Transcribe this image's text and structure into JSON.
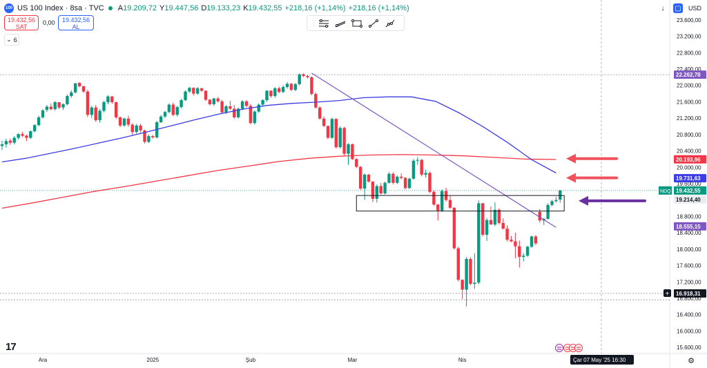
{
  "header": {
    "symbol": "US 100 Index · 8sa · TVC",
    "logo_text": "100",
    "o_label": "A",
    "o_value": "19.209,72",
    "h_label": "Y",
    "h_value": "19.447,56",
    "l_label": "D",
    "l_value": "19.133,23",
    "c_label": "K",
    "c_value": "19.432,55",
    "change": "+218,16 (+1,14%)",
    "change2": "+218,16 (+1,14%)"
  },
  "trade": {
    "sell_price": "19.432,56",
    "sell_label": "SAT",
    "spread": "0,00",
    "buy_price": "19.432,56",
    "buy_label": "AL"
  },
  "indicators_count": "6",
  "currency": "USD",
  "colors": {
    "up": "#089981",
    "down": "#f23645",
    "ma_fast": "#3b3be8",
    "ma_slow": "#f23645",
    "trendline": "#7e57c2",
    "arrow_red": "#f0525b",
    "arrow_purple": "#6a2fa1"
  },
  "chart_data": {
    "type": "candlestick",
    "ylim": [
      15450,
      23850
    ],
    "yticks": [
      "15.600,00",
      "16.000,00",
      "16.400,00",
      "16.800,00",
      "17.200,00",
      "17.600,00",
      "18.000,00",
      "18.400,00",
      "18.800,00",
      "19.200,00",
      "19.600,00",
      "20.000,00",
      "20.400,00",
      "20.800,00",
      "21.200,00",
      "21.600,00",
      "22.000,00",
      "22.400,00",
      "22.800,00",
      "23.200,00",
      "23.600,00"
    ],
    "xlabels": [
      "Ara",
      "2025",
      "Şub",
      "Mar",
      "Nis"
    ],
    "xlabel_index": [
      10,
      37,
      61,
      86,
      113
    ],
    "candles": [
      [
        20520,
        20650,
        20420,
        20560
      ],
      [
        20560,
        20700,
        20480,
        20640
      ],
      [
        20650,
        20700,
        20550,
        20600
      ],
      [
        20600,
        20760,
        20560,
        20720
      ],
      [
        20720,
        20830,
        20680,
        20810
      ],
      [
        20810,
        20860,
        20740,
        20770
      ],
      [
        20770,
        20800,
        20640,
        20720
      ],
      [
        20720,
        20900,
        20690,
        20880
      ],
      [
        20880,
        21050,
        20850,
        21030
      ],
      [
        21030,
        21260,
        21000,
        21220
      ],
      [
        21220,
        21420,
        21190,
        21390
      ],
      [
        21400,
        21520,
        21350,
        21480
      ],
      [
        21480,
        21560,
        21390,
        21420
      ],
      [
        21420,
        21620,
        21380,
        21590
      ],
      [
        21590,
        21580,
        21420,
        21460
      ],
      [
        21460,
        21560,
        21400,
        21540
      ],
      [
        21540,
        21780,
        21510,
        21740
      ],
      [
        21740,
        21880,
        21700,
        21830
      ],
      [
        21830,
        22060,
        21800,
        22050
      ],
      [
        22060,
        22080,
        21950,
        21980
      ],
      [
        21980,
        21990,
        21820,
        21850
      ],
      [
        21850,
        21890,
        21230,
        21280
      ],
      [
        21280,
        21500,
        21200,
        21460
      ],
      [
        21460,
        21520,
        21110,
        21150
      ],
      [
        21150,
        21420,
        21090,
        21380
      ],
      [
        21380,
        21620,
        21340,
        21590
      ],
      [
        21590,
        21760,
        21540,
        21730
      ],
      [
        21730,
        21740,
        21550,
        21590
      ],
      [
        21590,
        21600,
        21180,
        21220
      ],
      [
        21220,
        21240,
        20980,
        21020
      ],
      [
        21020,
        21210,
        20990,
        21190
      ],
      [
        21190,
        21260,
        20990,
        21040
      ],
      [
        21040,
        21080,
        20780,
        20860
      ],
      [
        20860,
        21060,
        20820,
        21020
      ],
      [
        21020,
        21060,
        20840,
        20900
      ],
      [
        20900,
        20920,
        20580,
        20620
      ],
      [
        20620,
        20800,
        20590,
        20760
      ],
      [
        20760,
        20790,
        20700,
        20730
      ],
      [
        20730,
        21130,
        20700,
        21100
      ],
      [
        21100,
        21280,
        21080,
        21240
      ],
      [
        21240,
        21380,
        21200,
        21350
      ],
      [
        21350,
        21560,
        21320,
        21530
      ],
      [
        21530,
        21580,
        21250,
        21280
      ],
      [
        21280,
        21500,
        21240,
        21470
      ],
      [
        21470,
        21670,
        21440,
        21640
      ],
      [
        21640,
        21880,
        21620,
        21850
      ],
      [
        21850,
        21960,
        21820,
        21940
      ],
      [
        21940,
        21950,
        21750,
        21800
      ],
      [
        21800,
        21960,
        21770,
        21930
      ],
      [
        21930,
        21940,
        21840,
        21870
      ],
      [
        21870,
        21880,
        21620,
        21650
      ],
      [
        21650,
        21670,
        21510,
        21540
      ],
      [
        21540,
        21700,
        21500,
        21680
      ],
      [
        21680,
        21720,
        21580,
        21610
      ],
      [
        21610,
        21650,
        21300,
        21340
      ],
      [
        21340,
        21520,
        21300,
        21490
      ],
      [
        21490,
        21620,
        21400,
        21430
      ],
      [
        21430,
        21520,
        21180,
        21220
      ],
      [
        21220,
        21460,
        21190,
        21430
      ],
      [
        21430,
        21640,
        21400,
        21610
      ],
      [
        21610,
        21640,
        21470,
        21500
      ],
      [
        21500,
        21550,
        21050,
        21080
      ],
      [
        21080,
        21390,
        21040,
        21360
      ],
      [
        21360,
        21560,
        21330,
        21530
      ],
      [
        21530,
        21660,
        21480,
        21640
      ],
      [
        21640,
        21880,
        21600,
        21870
      ],
      [
        21870,
        21880,
        21700,
        21740
      ],
      [
        21740,
        21960,
        21700,
        21930
      ],
      [
        21930,
        21970,
        21810,
        21840
      ],
      [
        21840,
        22000,
        21810,
        21960
      ],
      [
        21960,
        22080,
        21920,
        22040
      ],
      [
        22040,
        22060,
        21860,
        21890
      ],
      [
        21890,
        22060,
        21860,
        22030
      ],
      [
        22030,
        22290,
        22000,
        22270
      ],
      [
        22270,
        22300,
        22200,
        22230
      ],
      [
        22230,
        22250,
        22170,
        22200
      ],
      [
        22200,
        22220,
        21760,
        21790
      ],
      [
        21790,
        21830,
        21430,
        21460
      ],
      [
        21460,
        21490,
        21160,
        21190
      ],
      [
        21190,
        21240,
        20980,
        21010
      ],
      [
        21010,
        21020,
        20690,
        20720
      ],
      [
        20720,
        21210,
        20690,
        21180
      ],
      [
        21180,
        21200,
        20460,
        20490
      ],
      [
        20490,
        21000,
        20460,
        20960
      ],
      [
        20960,
        20990,
        20290,
        20330
      ],
      [
        20330,
        20590,
        20060,
        20560
      ],
      [
        20560,
        20580,
        20180,
        20200
      ],
      [
        20200,
        20220,
        19980,
        20010
      ],
      [
        20010,
        20030,
        19450,
        19480
      ],
      [
        19480,
        19850,
        19200,
        19820
      ],
      [
        19820,
        19840,
        19620,
        19650
      ],
      [
        19650,
        19660,
        19150,
        19230
      ],
      [
        19230,
        19580,
        19140,
        19540
      ],
      [
        19540,
        19620,
        19330,
        19360
      ],
      [
        19360,
        19650,
        19330,
        19620
      ],
      [
        19620,
        19880,
        19600,
        19840
      ],
      [
        19840,
        19880,
        19580,
        19620
      ],
      [
        19620,
        19800,
        19590,
        19770
      ],
      [
        19770,
        19850,
        19700,
        19740
      ],
      [
        19740,
        19760,
        19460,
        19490
      ],
      [
        19490,
        19750,
        19470,
        19720
      ],
      [
        19720,
        20200,
        19700,
        20160
      ],
      [
        20160,
        20250,
        20060,
        20180
      ],
      [
        20180,
        20200,
        19780,
        19820
      ],
      [
        19820,
        19940,
        19750,
        19860
      ],
      [
        19860,
        19890,
        19370,
        19400
      ],
      [
        19400,
        19430,
        19060,
        19090
      ],
      [
        19090,
        19100,
        18700,
        18940
      ],
      [
        18940,
        19460,
        18910,
        19420
      ],
      [
        19420,
        19500,
        19160,
        19200
      ],
      [
        19200,
        19310,
        18980,
        19010
      ],
      [
        19010,
        19030,
        17990,
        18020
      ],
      [
        18020,
        18060,
        17210,
        17250
      ],
      [
        17250,
        17260,
        16780,
        17010
      ],
      [
        17010,
        17810,
        16600,
        17760
      ],
      [
        17760,
        17800,
        17120,
        17150
      ],
      [
        17150,
        17900,
        17030,
        17180
      ],
      [
        17180,
        19190,
        17140,
        19120
      ],
      [
        19120,
        19130,
        18310,
        18350
      ],
      [
        18350,
        18760,
        18200,
        18710
      ],
      [
        18710,
        19040,
        18680,
        18600
      ],
      [
        18600,
        19140,
        18560,
        18960
      ],
      [
        18960,
        19000,
        18600,
        18640
      ],
      [
        18640,
        18750,
        18480,
        18500
      ],
      [
        18500,
        18580,
        18190,
        18230
      ],
      [
        18230,
        18320,
        18170,
        18190
      ],
      [
        18190,
        18400,
        17780,
        18070
      ],
      [
        18070,
        18210,
        17550,
        17810
      ],
      [
        17810,
        17900,
        17700,
        17840
      ],
      [
        17840,
        18080,
        17810,
        18060
      ],
      [
        18060,
        18330,
        18030,
        18310
      ],
      [
        18310,
        18340,
        18100,
        18140
      ],
      [
        18910,
        18980,
        18650,
        18700
      ],
      [
        18700,
        18760,
        18590,
        18740
      ],
      [
        18740,
        19120,
        18720,
        19080
      ],
      [
        19080,
        19200,
        19040,
        19170
      ],
      [
        19170,
        19280,
        19140,
        19200
      ],
      [
        19209.72,
        19447.56,
        19133.23,
        19432.55
      ]
    ],
    "ma_fast": {
      "start": 0,
      "end": 136,
      "values": [
        20130,
        20220,
        20340,
        20460,
        20590,
        20720,
        20860,
        21010,
        21160,
        21300,
        21420,
        21510,
        21560,
        21590,
        21630,
        21700,
        21720,
        21720,
        21610,
        21320,
        20980,
        20600,
        20180,
        19860
      ]
    },
    "ma_slow": {
      "start": 0,
      "end": 136,
      "values": [
        19000,
        19130,
        19270,
        19410,
        19530,
        19660,
        19790,
        19920,
        20030,
        20140,
        20220,
        20270,
        20300,
        20310,
        20300,
        20280,
        20240,
        20200,
        20190
      ]
    },
    "trendline": {
      "from": [
        76,
        22300
      ],
      "to": [
        136,
        18530
      ]
    },
    "rectangle": {
      "from_index": 87,
      "to_index": 138,
      "top": 19310,
      "bottom": 18930
    },
    "arrows": [
      {
        "color": "red",
        "price": 20210
      },
      {
        "color": "red",
        "price": 19740
      },
      {
        "color": "purple",
        "price": 19180
      }
    ],
    "hline_solid_label": "NDQ",
    "price_labels": [
      {
        "text": "22.262,78",
        "price": 22262.78,
        "bg": "#7e57c2"
      },
      {
        "text": "20.193,96",
        "price": 20193.96,
        "bg": "#f23645"
      },
      {
        "text": "19.731,63",
        "price": 19731.63,
        "bg": "#3b3be8"
      },
      {
        "text": "19.432,55",
        "price": 19432.55,
        "bg": "#089981"
      },
      {
        "text": "19.214,40",
        "price": 19214.4,
        "bg": "#e9ecef"
      },
      {
        "text": "18.555,15",
        "price": 18555.15,
        "bg": "#7e57c2"
      },
      {
        "text": "16.918,31",
        "price": 16918.31,
        "bg": "#131722"
      }
    ],
    "hlines": [
      22262.78,
      16918.31,
      16760
    ],
    "crosshair_date": "Çar 07 May '25   16:30"
  }
}
